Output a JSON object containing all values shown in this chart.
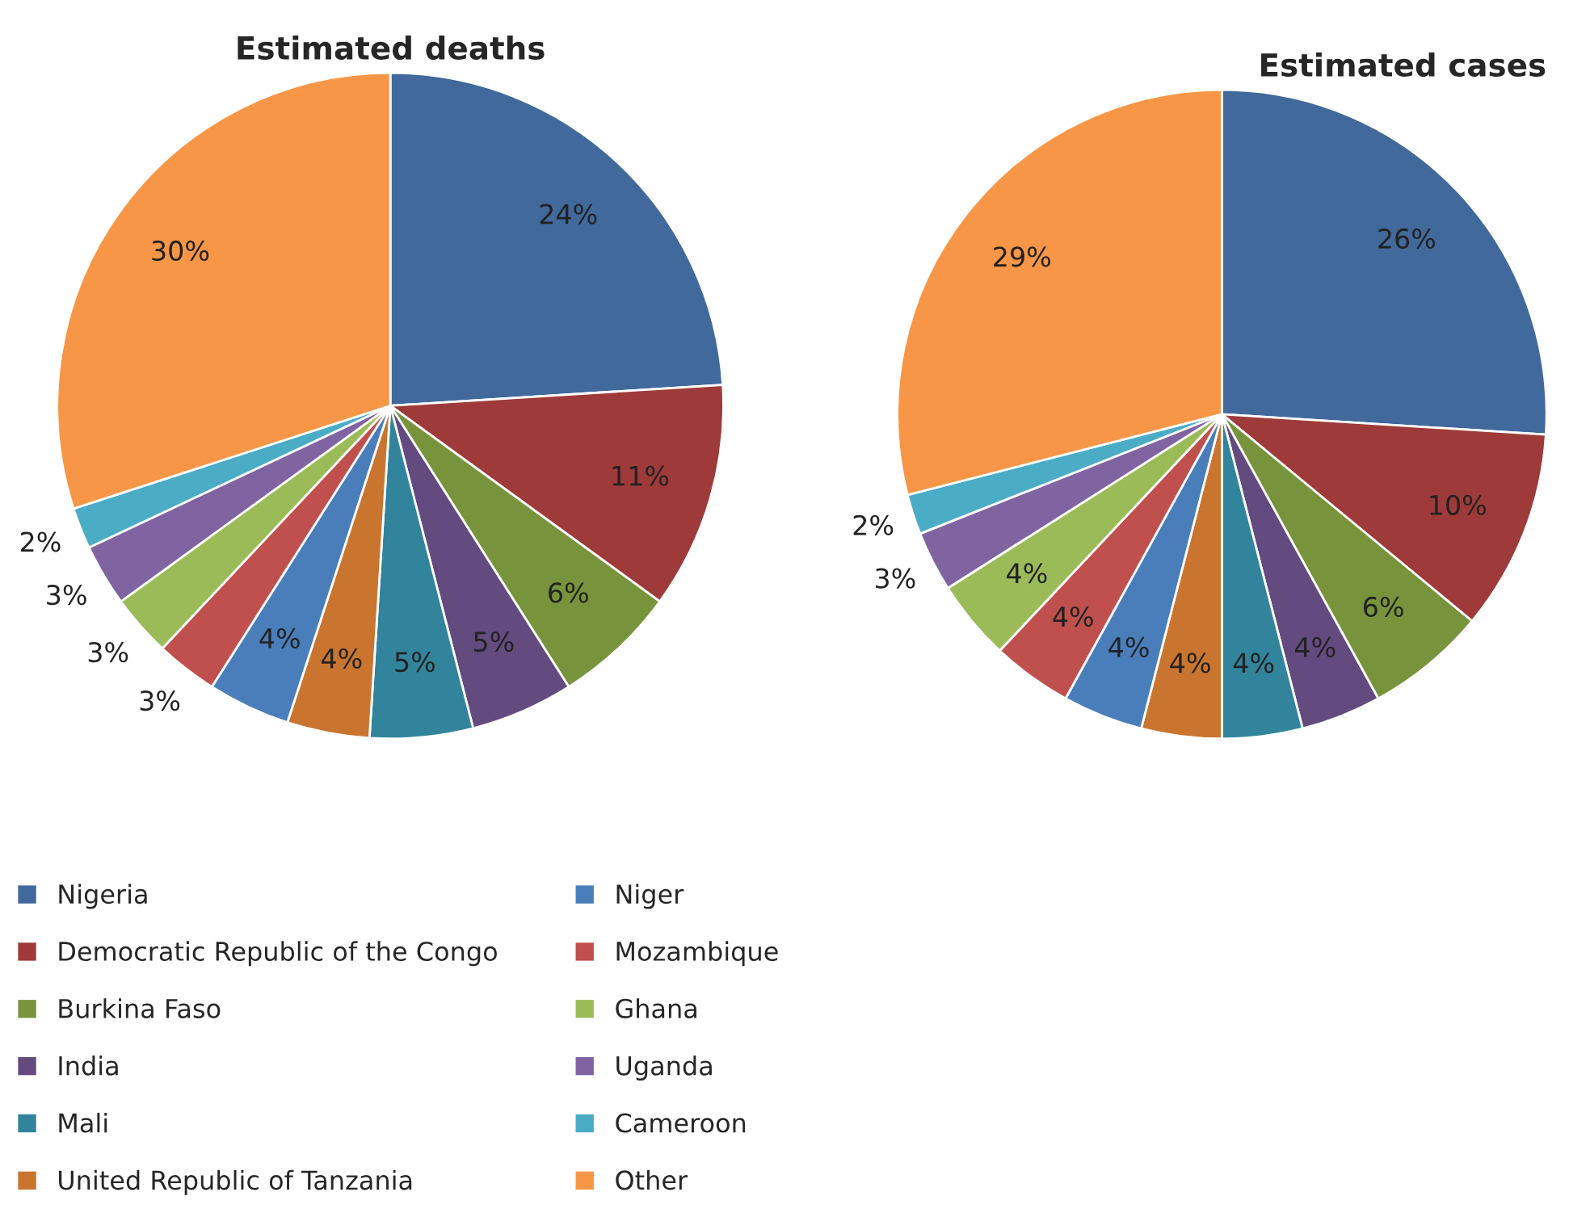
{
  "chart_data": [
    {
      "type": "pie",
      "title": "Estimated deaths",
      "legend": "bottom",
      "categories": [
        "Nigeria",
        "Democratic Republic of the Congo",
        "Burkina Faso",
        "India",
        "Mali",
        "United Republic of Tanzania",
        "Niger",
        "Mozambique",
        "Ghana",
        "Uganda",
        "Cameroon",
        "Other"
      ],
      "values": [
        24,
        11,
        6,
        5,
        5,
        4,
        4,
        3,
        3,
        3,
        2,
        30
      ],
      "value_labels": [
        "24%",
        "11%",
        "6%",
        "5%",
        "5%",
        "4%",
        "4%",
        "3%",
        "3%",
        "3%",
        "2%",
        "30%"
      ],
      "colors": [
        "#41699c",
        "#9e3b3a",
        "#77943c",
        "#634a7f",
        "#31849b",
        "#c9752f",
        "#4a7ebb",
        "#c0504d",
        "#9bbb59",
        "#8064a2",
        "#4bacc6",
        "#f79646"
      ]
    },
    {
      "type": "pie",
      "title": "Estimated cases",
      "categories": [
        null,
        null,
        null,
        null,
        null,
        null,
        null,
        null,
        null,
        null,
        null,
        null
      ],
      "values": [
        26,
        10,
        6,
        4,
        4,
        4,
        4,
        4,
        4,
        3,
        2,
        29
      ],
      "value_labels": [
        "26%",
        "10%",
        "6%",
        "4%",
        "4%",
        "4%",
        "4%",
        "4%",
        "4%",
        "3%",
        "2%",
        "29%"
      ],
      "colors": [
        "#41699c",
        "#9e3b3a",
        "#77943c",
        "#634a7f",
        "#31849b",
        "#c9752f",
        "#4a7ebb",
        "#c0504d",
        "#9bbb59",
        "#8064a2",
        "#4bacc6",
        "#f79646"
      ]
    }
  ]
}
